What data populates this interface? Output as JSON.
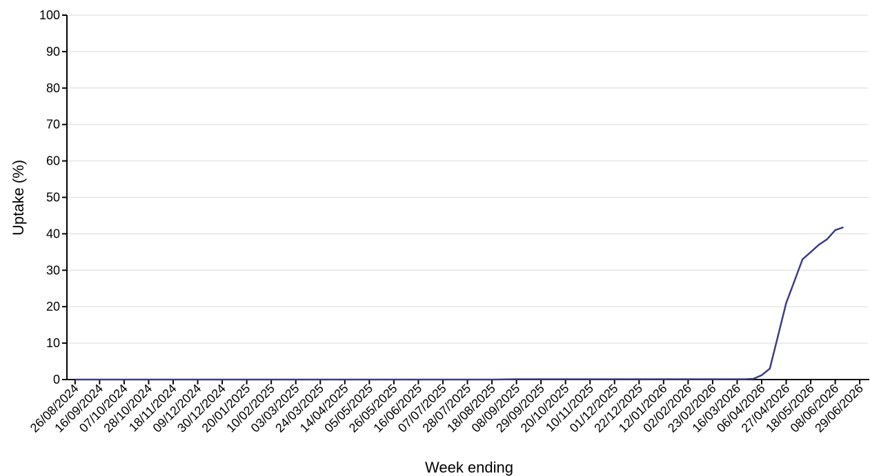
{
  "chart_data": {
    "type": "line",
    "title": "",
    "xlabel": "Week ending",
    "ylabel": "Uptake (%)",
    "ylim": [
      0,
      100
    ],
    "y_ticks": [
      0,
      10,
      20,
      30,
      40,
      50,
      60,
      70,
      80,
      90,
      100
    ],
    "y_tick_labels": [
      "0",
      "10",
      "20",
      "30",
      "40",
      "50",
      "60",
      "70",
      "80",
      "90",
      "100"
    ],
    "grid": "horizontal",
    "x_tick_labels": [
      "26/08/2024",
      "16/09/2024",
      "07/10/2024",
      "28/10/2024",
      "18/11/2024",
      "09/12/2024",
      "30/12/2024",
      "20/01/2025",
      "10/02/2025",
      "03/03/2025",
      "24/03/2025",
      "14/04/2025",
      "05/05/2025",
      "26/05/2025",
      "16/06/2025",
      "07/07/2025",
      "28/07/2025",
      "18/08/2025",
      "08/09/2025",
      "29/09/2025",
      "20/10/2025",
      "10/11/2025",
      "01/12/2025",
      "22/12/2025",
      "12/01/2026",
      "02/02/2026",
      "23/02/2026",
      "16/03/2026",
      "06/04/2026",
      "27/04/2026",
      "18/05/2026",
      "08/06/2026",
      "29/06/2026"
    ],
    "x_range": [
      "19/08/2024",
      "06/07/2026"
    ],
    "series": [
      {
        "color": "#3b3b8c",
        "x": [
          "26/08/2024",
          "16/09/2024",
          "07/10/2024",
          "28/10/2024",
          "18/11/2024",
          "09/12/2024",
          "30/12/2024",
          "20/01/2025",
          "10/02/2025",
          "03/03/2025",
          "24/03/2025",
          "14/04/2025",
          "05/05/2025",
          "26/05/2025",
          "16/06/2025",
          "07/07/2025",
          "28/07/2025",
          "18/08/2025",
          "08/09/2025",
          "29/09/2025",
          "20/10/2025",
          "10/11/2025",
          "01/12/2025",
          "22/12/2025",
          "12/01/2026",
          "02/02/2026",
          "23/02/2026",
          "16/03/2026",
          "23/03/2026",
          "30/03/2026",
          "06/04/2026",
          "13/04/2026",
          "20/04/2026",
          "27/04/2026",
          "04/05/2026",
          "11/05/2026",
          "18/05/2026",
          "25/05/2026",
          "01/06/2026",
          "08/06/2026",
          "15/06/2026"
        ],
        "y": [
          0,
          0,
          0,
          0,
          0,
          0,
          0,
          0,
          0,
          0,
          0,
          0,
          0,
          0,
          0,
          0,
          0,
          0,
          0.1,
          0.1,
          0.1,
          0.1,
          0.1,
          0.1,
          0.1,
          0.1,
          0.1,
          0.1,
          0.1,
          0.2,
          1.2,
          3,
          12,
          21,
          27,
          33,
          35,
          37,
          38.5,
          41,
          41.8
        ]
      }
    ]
  }
}
